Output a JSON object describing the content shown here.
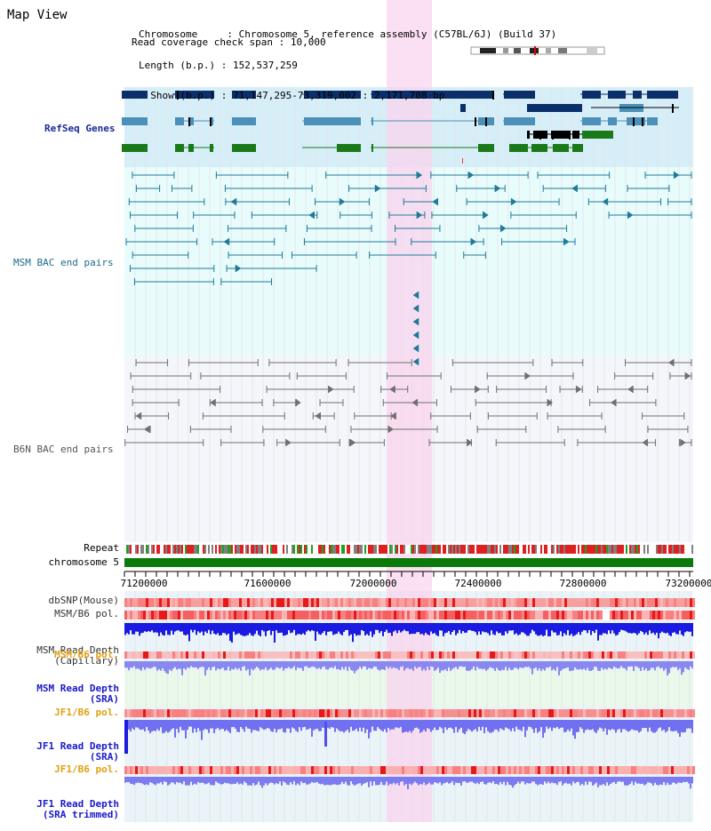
{
  "view_title": "Map View",
  "info": {
    "chromosome_key": "Chromosome",
    "chromosome_val": "Chromosome 5, reference assembly (C57BL/6J) (Build 37)",
    "length_key": "Length (b.p.)",
    "length_val": "152,537,259",
    "show_key": "Show (b.p.)",
    "show_val": "71,147,295-73,319,002 : 2,171,708 bp",
    "read_key": "Read coverage check span",
    "read_val": "10,000"
  },
  "tracks": {
    "refseq": "RefSeq Genes",
    "msm_bac": "MSM BAC end pairs",
    "b6n_bac": "B6N BAC end pairs",
    "repeat": "Repeat",
    "chromosome": "chromosome 5",
    "dbsnp": "dbSNP(Mouse)",
    "msm_b6_pol_1": "MSM/B6 pol.",
    "msm_read_depth_cap_1": "MSM Read Depth",
    "msm_read_depth_cap_2": "(Capillary)",
    "msm_b6_pol_2": "MSM/B6 pol.",
    "msm_read_depth_sra_1": "MSM Read Depth",
    "msm_read_depth_sra_2": "(SRA)",
    "jf1_b6_pol_1": "JF1/B6 pol.",
    "jf1_read_depth_sra_1": "JF1 Read Depth",
    "jf1_read_depth_sra_2": "(SRA)",
    "jf1_b6_pol_2": "JF1/B6 pol.",
    "jf1_read_depth_trim_1": "JF1 Read Depth",
    "jf1_read_depth_trim_2": "(SRA trimmed)"
  },
  "axis_ticks": [
    "71200000",
    "71600000",
    "72000000",
    "72400000",
    "72800000",
    "73200000"
  ],
  "colors": {
    "refseq_bg": "#d6eef8",
    "msm_bg": "#e8fcfc",
    "b6n_bg": "#f4f6fb",
    "highlight": "#f9d4ee",
    "gene_dark": "#0a2f6b",
    "gene_mid": "#4a90b8",
    "gene_green": "#1a7a1a",
    "msm_pair": "#1f7a9a",
    "b6n_pair": "#707070",
    "chrom": "#0a7a0a",
    "depth_blue": "#1a1aee",
    "depth_light": "#7b7bf0",
    "pol_red": "#f04848"
  }
}
